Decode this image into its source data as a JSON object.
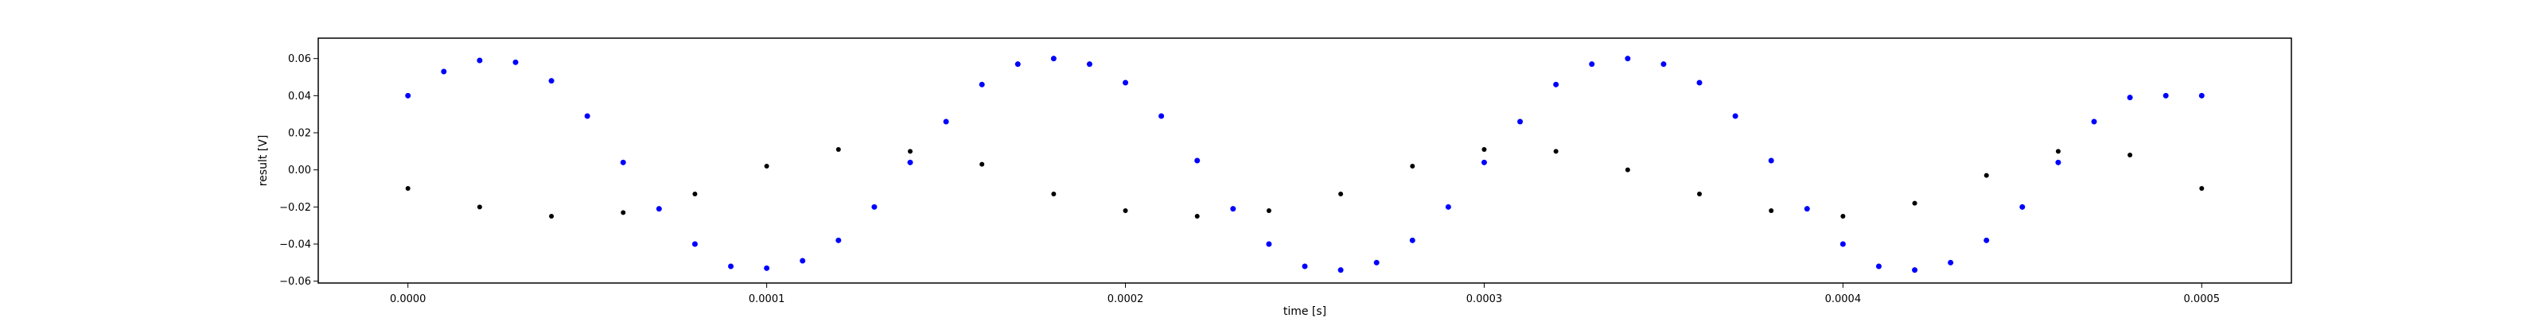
{
  "chart_data": {
    "type": "scatter",
    "title": "",
    "xlabel": "time [s]",
    "ylabel": "result [V]",
    "xlim": [
      -2.5e-05,
      0.000525
    ],
    "ylim": [
      -0.061,
      0.071
    ],
    "grid": false,
    "x_ticks": [
      "0.0000",
      "0.0001",
      "0.0002",
      "0.0003",
      "0.0004",
      "0.0005"
    ],
    "x_tick_values": [
      0.0,
      0.0001,
      0.0002,
      0.0003,
      0.0004,
      0.0005
    ],
    "y_ticks": [
      "−0.06",
      "−0.04",
      "−0.02",
      "0.00",
      "0.02",
      "0.04",
      "0.06"
    ],
    "y_tick_values": [
      -0.06,
      -0.04,
      -0.02,
      0.0,
      0.02,
      0.04,
      0.06
    ],
    "series": [
      {
        "color": "#000000",
        "marker": "dot",
        "x": [
          0.0,
          2e-05,
          4e-05,
          6e-05,
          8e-05,
          0.0001,
          0.00012,
          0.00014,
          0.00016,
          0.00018,
          0.0002,
          0.00022,
          0.00024,
          0.00026,
          0.00028,
          0.0003,
          0.00032,
          0.00034,
          0.00036,
          0.00038,
          0.0004,
          0.00042,
          0.00044,
          0.00046,
          0.00048,
          0.0005
        ],
        "y": [
          -0.01,
          -0.02,
          -0.025,
          -0.023,
          -0.013,
          0.002,
          0.011,
          0.01,
          0.003,
          -0.013,
          -0.022,
          -0.025,
          -0.022,
          -0.013,
          0.002,
          0.011,
          0.01,
          0.0,
          -0.013,
          -0.022,
          -0.025,
          -0.018,
          -0.003,
          0.01,
          0.008,
          -0.01
        ]
      },
      {
        "color": "#0000ff",
        "marker": "dot",
        "x": [
          0.0,
          1e-05,
          2e-05,
          3e-05,
          4e-05,
          5e-05,
          6e-05,
          7e-05,
          8e-05,
          9e-05,
          0.0001,
          0.00011,
          0.00012,
          0.00013,
          0.00014,
          0.00015,
          0.00016,
          0.00017,
          0.00018,
          0.00019,
          0.0002,
          0.00021,
          0.00022,
          0.00023,
          0.00024,
          0.00025,
          0.00026,
          0.00027,
          0.00028,
          0.00029,
          0.0003,
          0.00031,
          0.00032,
          0.00033,
          0.00034,
          0.00035,
          0.00036,
          0.00037,
          0.00038,
          0.00039,
          0.0004,
          0.00041,
          0.00042,
          0.00043,
          0.00044,
          0.00045,
          0.00046,
          0.00047,
          0.00048,
          0.00049,
          0.0005
        ],
        "y": [
          0.04,
          0.053,
          0.059,
          0.058,
          0.048,
          0.029,
          0.004,
          -0.021,
          -0.04,
          -0.052,
          -0.053,
          -0.049,
          -0.038,
          -0.02,
          0.004,
          0.026,
          0.046,
          0.057,
          0.06,
          0.057,
          0.047,
          0.029,
          0.005,
          -0.021,
          -0.04,
          -0.052,
          -0.054,
          -0.05,
          -0.038,
          -0.02,
          0.004,
          0.026,
          0.046,
          0.057,
          0.06,
          0.057,
          0.047,
          0.029,
          0.005,
          -0.021,
          -0.04,
          -0.052,
          -0.054,
          -0.05,
          -0.038,
          -0.02,
          0.004,
          0.026,
          0.039,
          0.04,
          0.04
        ]
      }
    ]
  }
}
